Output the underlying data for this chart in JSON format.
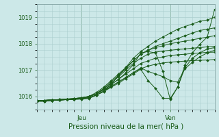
{
  "title": "",
  "xlabel": "Pression niveau de la mer( hPa )",
  "ylabel": "",
  "bg_color": "#cce8e8",
  "line_color": "#1a5c1a",
  "grid_color": "#aacece",
  "axis_label_color": "#1a5c1a",
  "tick_label_color": "#1a5c1a",
  "ylim": [
    1015.5,
    1019.5
  ],
  "xlim": [
    0,
    48
  ],
  "yticks": [
    1016,
    1017,
    1018,
    1019
  ],
  "xtick_positions": [
    12,
    36
  ],
  "xtick_labels": [
    "Jeu",
    "Ven"
  ],
  "series": [
    [
      1015.85,
      1015.85,
      1015.87,
      1015.87,
      1015.88,
      1015.88,
      1015.9,
      1015.92,
      1016.05,
      1016.2,
      1016.45,
      1016.8,
      1017.1,
      1017.45,
      1017.7,
      1017.9,
      1018.1,
      1018.25,
      1018.4,
      1018.55,
      1018.65,
      1018.75,
      1018.85,
      1018.9,
      1019.0
    ],
    [
      1015.85,
      1015.85,
      1015.87,
      1015.88,
      1015.9,
      1015.9,
      1015.92,
      1016.0,
      1016.1,
      1016.3,
      1016.55,
      1016.8,
      1017.05,
      1017.35,
      1017.6,
      1017.75,
      1017.9,
      1018.0,
      1018.1,
      1018.2,
      1018.3,
      1018.4,
      1018.5,
      1018.55,
      1018.6
    ],
    [
      1015.85,
      1015.85,
      1015.87,
      1015.88,
      1015.9,
      1015.92,
      1015.95,
      1016.0,
      1016.15,
      1016.35,
      1016.6,
      1016.85,
      1017.1,
      1017.35,
      1017.6,
      1017.75,
      1017.85,
      1017.92,
      1018.0,
      1018.05,
      1018.1,
      1018.15,
      1018.2,
      1018.25,
      1018.3
    ],
    [
      1015.85,
      1015.85,
      1015.87,
      1015.88,
      1015.9,
      1015.92,
      1015.95,
      1016.0,
      1016.1,
      1016.3,
      1016.5,
      1016.75,
      1017.0,
      1017.25,
      1017.45,
      1017.6,
      1017.68,
      1017.72,
      1017.75,
      1017.78,
      1017.8,
      1017.83,
      1017.85,
      1017.88,
      1017.9
    ],
    [
      1015.85,
      1015.85,
      1015.87,
      1015.88,
      1015.9,
      1015.92,
      1015.95,
      1016.0,
      1016.1,
      1016.25,
      1016.45,
      1016.65,
      1016.85,
      1017.05,
      1017.25,
      1017.35,
      1017.45,
      1017.5,
      1017.55,
      1017.58,
      1017.6,
      1017.63,
      1017.65,
      1017.67,
      1017.68
    ],
    [
      1015.82,
      1015.82,
      1015.85,
      1015.86,
      1015.88,
      1015.9,
      1015.92,
      1015.95,
      1016.05,
      1016.2,
      1016.38,
      1016.55,
      1016.72,
      1016.9,
      1017.05,
      1017.15,
      1017.22,
      1017.27,
      1017.3,
      1017.32,
      1017.34,
      1017.36,
      1017.37,
      1017.38,
      1017.4
    ],
    [
      1015.82,
      1015.82,
      1015.85,
      1015.86,
      1015.88,
      1015.9,
      1015.92,
      1015.95,
      1016.05,
      1016.2,
      1016.38,
      1016.55,
      1016.72,
      1016.9,
      1017.08,
      1016.95,
      1016.85,
      1016.75,
      1016.6,
      1016.55,
      1017.05,
      1017.3,
      1017.5,
      1017.65,
      1017.75
    ],
    [
      1015.82,
      1015.82,
      1015.85,
      1015.86,
      1015.88,
      1015.9,
      1015.92,
      1015.95,
      1016.05,
      1016.18,
      1016.35,
      1016.5,
      1016.68,
      1016.85,
      1017.03,
      1016.6,
      1016.3,
      1015.93,
      1015.93,
      1016.35,
      1017.1,
      1017.45,
      1017.65,
      1017.8,
      1017.85
    ],
    [
      1015.82,
      1015.82,
      1015.85,
      1015.86,
      1015.88,
      1015.9,
      1015.93,
      1015.98,
      1016.1,
      1016.25,
      1016.45,
      1016.65,
      1016.9,
      1017.2,
      1017.65,
      1017.7,
      1017.65,
      1016.95,
      1015.88,
      1016.35,
      1017.2,
      1017.65,
      1017.98,
      1018.25,
      1019.3
    ]
  ]
}
